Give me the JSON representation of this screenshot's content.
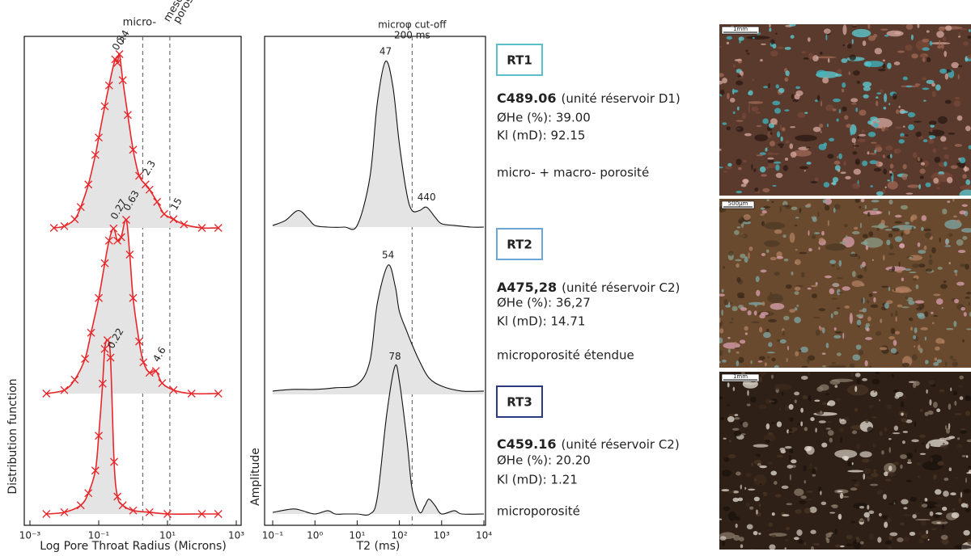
{
  "chart_data": [
    {
      "type": "line",
      "log_x": true,
      "xlabel": "Log Pore Throat Radius (Microns)",
      "ylabel": "Distribution function",
      "xlim": [
        0.001,
        1000
      ],
      "xticks": [
        {
          "value": 0.001,
          "label": "10⁻³"
        },
        {
          "value": 0.1,
          "label": "10⁻¹"
        },
        {
          "value": 10,
          "label": "10¹"
        },
        {
          "value": 1000,
          "label": "10³"
        }
      ],
      "ylim": [
        0,
        1
      ],
      "color": "#e8262a",
      "markers": "x",
      "fill": "#e4e4e4",
      "cutoffs": [
        1.9,
        11.7
      ],
      "cutoff_labels": [
        "micro-",
        "meso-",
        "porosité"
      ],
      "series": [
        {
          "x": [
            0.005,
            0.01,
            0.02,
            0.03,
            0.05,
            0.08,
            0.1,
            0.15,
            0.2,
            0.3,
            0.35,
            0.4,
            0.5,
            0.7,
            1,
            1.5,
            2.3,
            3,
            5,
            8,
            15,
            30,
            100,
            300
          ],
          "values": [
            0,
            0.01,
            0.05,
            0.12,
            0.25,
            0.42,
            0.52,
            0.7,
            0.82,
            0.97,
            0.95,
            1.0,
            0.85,
            0.65,
            0.45,
            0.3,
            0.25,
            0.22,
            0.15,
            0.08,
            0.05,
            0.02,
            0,
            0
          ],
          "peaks": [
            0.3,
            0.4,
            2.3,
            15
          ]
        },
        {
          "x": [
            0.003,
            0.01,
            0.02,
            0.04,
            0.06,
            0.1,
            0.15,
            0.2,
            0.27,
            0.35,
            0.45,
            0.63,
            0.8,
            1,
            1.5,
            2,
            3,
            4.6,
            7,
            15,
            50,
            300
          ],
          "values": [
            0,
            0.02,
            0.08,
            0.2,
            0.35,
            0.55,
            0.75,
            0.88,
            0.95,
            0.88,
            0.9,
            1.0,
            0.8,
            0.55,
            0.3,
            0.18,
            0.12,
            0.13,
            0.06,
            0.02,
            0,
            0
          ],
          "peaks": [
            0.27,
            0.63,
            4.6
          ]
        },
        {
          "x": [
            0.003,
            0.01,
            0.03,
            0.05,
            0.08,
            0.1,
            0.13,
            0.15,
            0.18,
            0.22,
            0.28,
            0.35,
            0.5,
            1,
            3,
            10,
            100,
            300
          ],
          "values": [
            0,
            0.01,
            0.05,
            0.12,
            0.25,
            0.45,
            0.75,
            0.95,
            1.0,
            0.9,
            0.3,
            0.1,
            0.05,
            0.02,
            0.01,
            0,
            0,
            0
          ],
          "peaks": [
            0.22
          ]
        }
      ]
    },
    {
      "type": "line",
      "log_x": true,
      "xlabel": "T2 (ms)",
      "ylabel": "Amplitude",
      "xlim": [
        0.1,
        10000
      ],
      "xticks": [
        {
          "value": 0.1,
          "label": "10⁻¹"
        },
        {
          "value": 1,
          "label": "10⁰"
        },
        {
          "value": 10,
          "label": "10¹"
        },
        {
          "value": 100,
          "label": "10²"
        },
        {
          "value": 1000,
          "label": "10³"
        },
        {
          "value": 10000,
          "label": "10⁴"
        }
      ],
      "ylim": [
        0,
        1
      ],
      "color": "#111111",
      "fill": "#e4e4e4",
      "cutoffs": [
        200
      ],
      "cutoff_labels": [
        "microφ cut-off",
        "200 ms"
      ],
      "series": [
        {
          "x": [
            0.1,
            0.2,
            0.4,
            0.7,
            1,
            2,
            5,
            10,
            20,
            30,
            47,
            70,
            100,
            150,
            200,
            300,
            440,
            700,
            1000,
            2000,
            5000,
            10000
          ],
          "values": [
            0.01,
            0.04,
            0.1,
            0.05,
            0.01,
            0,
            0,
            0.01,
            0.3,
            0.75,
            1.0,
            0.85,
            0.5,
            0.2,
            0.1,
            0.1,
            0.12,
            0.06,
            0.02,
            0.01,
            0,
            0
          ],
          "peaks": [
            47,
            440
          ]
        },
        {
          "x": [
            0.1,
            0.3,
            1,
            3,
            10,
            20,
            30,
            54,
            80,
            100,
            150,
            200,
            300,
            500,
            1000,
            3000,
            10000
          ],
          "values": [
            0.02,
            0.03,
            0.03,
            0.04,
            0.06,
            0.2,
            0.55,
            0.78,
            0.65,
            0.5,
            0.38,
            0.3,
            0.2,
            0.1,
            0.05,
            0.02,
            0.02
          ],
          "peaks": [
            54
          ]
        },
        {
          "x": [
            0.1,
            0.3,
            0.5,
            1,
            2,
            3,
            5,
            10,
            20,
            30,
            50,
            78,
            100,
            150,
            200,
            300,
            400,
            500,
            700,
            1000,
            2000,
            3000,
            10000
          ],
          "values": [
            0.01,
            0.03,
            0.02,
            0,
            0.02,
            0,
            0,
            0,
            0,
            0.1,
            0.6,
            0.89,
            0.8,
            0.45,
            0.15,
            0.01,
            0.05,
            0.09,
            0.05,
            0,
            0.02,
            0,
            0
          ],
          "peaks": [
            78
          ]
        }
      ]
    }
  ],
  "rock_types": [
    {
      "label": "RT1",
      "sample": "C489.06",
      "unit": "(unité réservoir D1)",
      "porosity": "ØHe (%): 39.00",
      "permeability": "Kl (mD): 92.15",
      "description": "micro- + macro- porosité",
      "scale_bar": "1mm"
    },
    {
      "label": "RT2",
      "sample": "A475,28",
      "unit": "(unité réservoir C2)",
      "porosity": "ØHe (%): 36,27",
      "permeability": "Kl (mD): 14.71",
      "description": "microporosité étendue",
      "scale_bar": "500µm"
    },
    {
      "label": "RT3",
      "sample": "C459.16",
      "unit": "(unité réservoir C2)",
      "porosity": "ØHe (%): 20.20",
      "permeability": "Kl (mD): 1.21",
      "description": "microporosité",
      "scale_bar": "1mm"
    }
  ]
}
